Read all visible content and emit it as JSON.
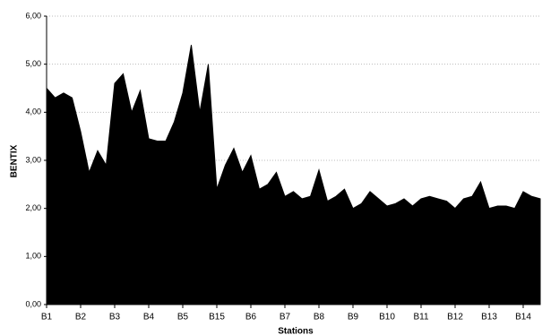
{
  "chart_data": {
    "type": "area",
    "x_label": "Stations",
    "y_label": "BENTIX",
    "categories": [
      "B1",
      null,
      null,
      null,
      "B2",
      null,
      null,
      null,
      "B3",
      null,
      null,
      null,
      "B4",
      null,
      null,
      null,
      "B5",
      null,
      null,
      null,
      "B15",
      null,
      null,
      null,
      "B6",
      null,
      null,
      null,
      "B7",
      null,
      null,
      null,
      "B8",
      null,
      null,
      null,
      "B9",
      null,
      null,
      null,
      "B10",
      null,
      null,
      null,
      "B11",
      null,
      null,
      null,
      "B12",
      null,
      null,
      null,
      "B13",
      null,
      null,
      null,
      "B14",
      null,
      null
    ],
    "values": [
      4.5,
      4.3,
      4.4,
      4.3,
      3.6,
      2.75,
      3.2,
      2.9,
      4.6,
      4.8,
      4.0,
      4.45,
      3.45,
      3.4,
      3.4,
      3.8,
      4.4,
      5.4,
      4.0,
      5.0,
      2.4,
      2.9,
      3.25,
      2.75,
      3.1,
      2.4,
      2.5,
      2.75,
      2.25,
      2.35,
      2.2,
      2.25,
      2.8,
      2.15,
      2.25,
      2.4,
      2.0,
      2.1,
      2.35,
      2.2,
      2.05,
      2.1,
      2.2,
      2.05,
      2.2,
      2.25,
      2.2,
      2.15,
      2.0,
      2.2,
      2.25,
      2.55,
      2.0,
      2.05,
      2.05,
      2.0,
      2.35,
      2.25,
      2.2
    ],
    "color": "#000000",
    "ylim": [
      0,
      6
    ],
    "yticks": [
      {
        "value": 0,
        "label": "0,00"
      },
      {
        "value": 1,
        "label": "1,00"
      },
      {
        "value": 2,
        "label": "2,00"
      },
      {
        "value": 3,
        "label": "3,00"
      },
      {
        "value": 4,
        "label": "4,00"
      },
      {
        "value": 5,
        "label": "5,00"
      },
      {
        "value": 6,
        "label": "6,00"
      }
    ],
    "grid": true
  }
}
